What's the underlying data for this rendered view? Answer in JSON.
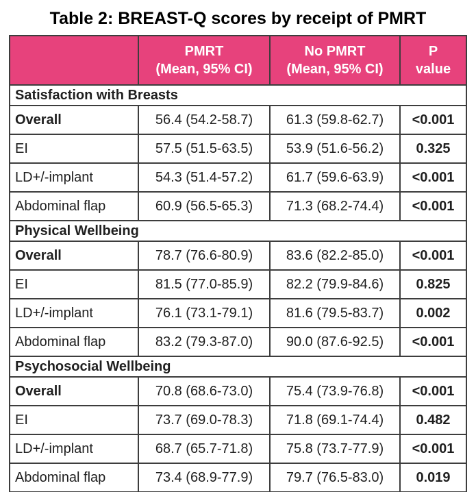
{
  "page": {
    "title": "Table 2: BREAST-Q scores by receipt of PMRT"
  },
  "colors": {
    "header_bg": "#e7427c",
    "header_text": "#ffffff",
    "border": "#3d3d3d",
    "body_text": "#1f1f1f"
  },
  "table": {
    "columns": {
      "group": "",
      "pmrt": "PMRT\n(Mean, 95% CI)",
      "no_pmrt": "No PMRT\n(Mean, 95% CI)",
      "p": "P\nvalue"
    },
    "sections": [
      {
        "label": "Satisfaction with Breasts",
        "rows": [
          {
            "label": "Overall",
            "pmrt": "56.4 (54.2-58.7)",
            "no_pmrt": "61.3 (59.8-62.7)",
            "p": "<0.001"
          },
          {
            "label": "EI",
            "pmrt": "57.5 (51.5-63.5)",
            "no_pmrt": "53.9 (51.6-56.2)",
            "p": "0.325"
          },
          {
            "label": "LD+/-implant",
            "pmrt": "54.3 (51.4-57.2)",
            "no_pmrt": "61.7 (59.6-63.9)",
            "p": "<0.001"
          },
          {
            "label": "Abdominal flap",
            "pmrt": "60.9 (56.5-65.3)",
            "no_pmrt": "71.3 (68.2-74.4)",
            "p": "<0.001"
          }
        ]
      },
      {
        "label": "Physical Wellbeing",
        "rows": [
          {
            "label": "Overall",
            "pmrt": "78.7 (76.6-80.9)",
            "no_pmrt": "83.6 (82.2-85.0)",
            "p": "<0.001"
          },
          {
            "label": "EI",
            "pmrt": "81.5 (77.0-85.9)",
            "no_pmrt": "82.2 (79.9-84.6)",
            "p": "0.825"
          },
          {
            "label": "LD+/-implant",
            "pmrt": "76.1 (73.1-79.1)",
            "no_pmrt": "81.6 (79.5-83.7)",
            "p": "0.002"
          },
          {
            "label": "Abdominal flap",
            "pmrt": "83.2 (79.3-87.0)",
            "no_pmrt": "90.0 (87.6-92.5)",
            "p": "<0.001"
          }
        ]
      },
      {
        "label": "Psychosocial Wellbeing",
        "rows": [
          {
            "label": "Overall",
            "pmrt": "70.8 (68.6-73.0)",
            "no_pmrt": "75.4 (73.9-76.8)",
            "p": "<0.001"
          },
          {
            "label": "EI",
            "pmrt": "73.7 (69.0-78.3)",
            "no_pmrt": "71.8 (69.1-74.4)",
            "p": "0.482"
          },
          {
            "label": "LD+/-implant",
            "pmrt": "68.7 (65.7-71.8)",
            "no_pmrt": "75.8 (73.7-77.9)",
            "p": "<0.001"
          },
          {
            "label": "Abdominal flap",
            "pmrt": "73.4 (68.9-77.9)",
            "no_pmrt": "79.7 (76.5-83.0)",
            "p": "0.019"
          }
        ]
      }
    ]
  }
}
